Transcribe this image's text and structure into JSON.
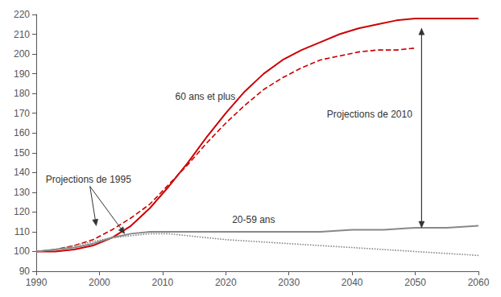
{
  "chart_data": {
    "type": "line",
    "xlim": [
      1990,
      2060
    ],
    "ylim": [
      90,
      220
    ],
    "xticks": [
      1990,
      2000,
      2010,
      2020,
      2030,
      2040,
      2050,
      2060
    ],
    "yticks": [
      90,
      100,
      110,
      120,
      130,
      140,
      150,
      160,
      170,
      180,
      190,
      200,
      210,
      220
    ],
    "grid": false,
    "series": [
      {
        "x": [
          1990,
          1993,
          1996,
          1999,
          2002,
          2005,
          2008,
          2011,
          2014,
          2017,
          2020,
          2023,
          2026,
          2029,
          2032,
          2035,
          2038,
          2041,
          2044,
          2047,
          2050,
          2053,
          2056,
          2060
        ],
        "values": [
          100,
          100,
          101,
          103,
          107,
          113,
          122,
          133,
          145,
          158,
          170,
          181,
          190,
          197,
          202,
          206,
          210,
          213,
          215,
          217,
          218,
          218,
          218,
          218
        ],
        "color": "#cc0000",
        "line_style": "solid"
      },
      {
        "x": [
          1990,
          1993,
          1996,
          1999,
          2002,
          2005,
          2008,
          2011,
          2014,
          2017,
          2020,
          2023,
          2026,
          2029,
          2032,
          2035,
          2038,
          2041,
          2044,
          2047,
          2050
        ],
        "values": [
          100,
          101,
          103,
          106,
          111,
          117,
          124,
          134,
          144,
          155,
          165,
          174,
          182,
          188,
          193,
          197,
          199,
          201,
          202,
          202,
          203
        ],
        "color": "#cc0000",
        "line_style": "dashed"
      },
      {
        "x": [
          1990,
          1993,
          1996,
          1999,
          2002,
          2005,
          2008,
          2011,
          2014,
          2017,
          2020,
          2025,
          2030,
          2035,
          2040,
          2045,
          2050,
          2055,
          2060
        ],
        "values": [
          100,
          101,
          102,
          104,
          107,
          109,
          110,
          110,
          110,
          110,
          110,
          110,
          110,
          110,
          111,
          111,
          112,
          112,
          113
        ],
        "color": "#888888",
        "line_style": "solid"
      },
      {
        "x": [
          1990,
          1993,
          1996,
          1999,
          2002,
          2005,
          2008,
          2011,
          2014,
          2017,
          2020,
          2025,
          2030,
          2035,
          2040,
          2045,
          2050,
          2055,
          2060
        ],
        "values": [
          100,
          101,
          103,
          105,
          107,
          108,
          109,
          109,
          108,
          107,
          106,
          105,
          104,
          103,
          102,
          101,
          100,
          99,
          98
        ],
        "color": "#888888",
        "line_style": "dotted"
      }
    ],
    "annotations": [
      {
        "text": "60 ans et plus",
        "x": 2012,
        "y": 176,
        "color": "#333333"
      },
      {
        "text": "20-59 ans",
        "x": 2021,
        "y": 113.5,
        "color": "#333333"
      },
      {
        "text": "Projections de 1995",
        "x": 1991.5,
        "y": 134,
        "color": "#333333",
        "arrows": [
          {
            "from": [
              1998.5,
              133
            ],
            "to": [
              1999.5,
              113
            ]
          },
          {
            "from": [
              1998.5,
              133
            ],
            "to": [
              2004.0,
              109
            ]
          }
        ]
      },
      {
        "text": "Projections de 2010",
        "x": 2036,
        "y": 167,
        "color": "#333333",
        "arrows": [
          {
            "from": [
              2051,
              112
            ],
            "to": [
              2051,
              213
            ]
          },
          {
            "from": [
              2051,
              213
            ],
            "to": [
              2051,
              112
            ]
          }
        ]
      }
    ]
  }
}
